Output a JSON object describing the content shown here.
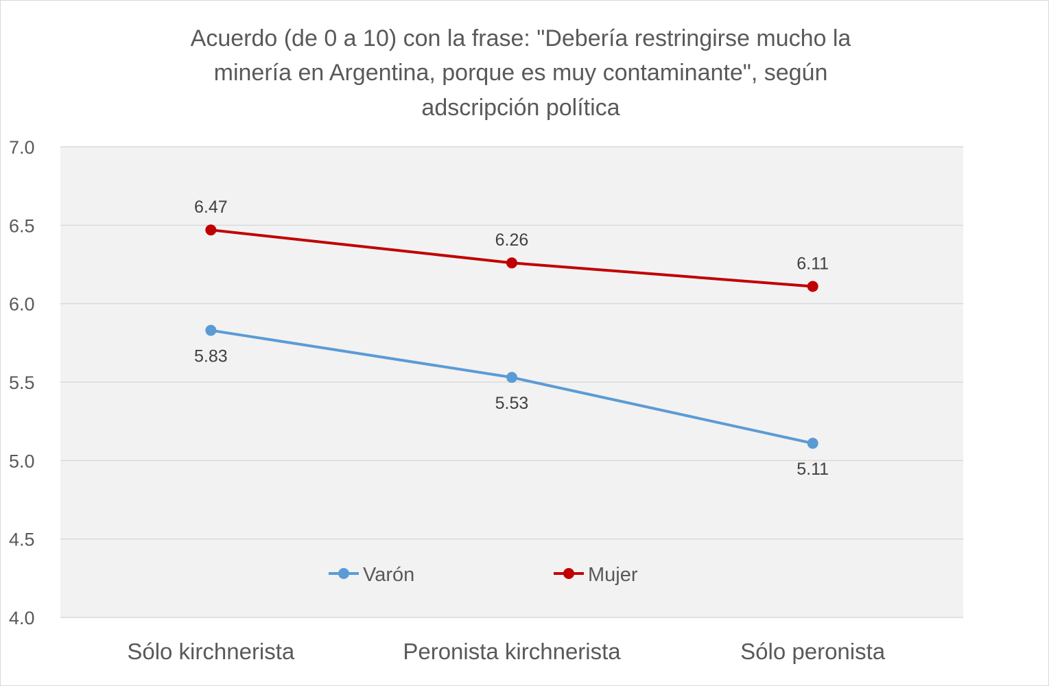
{
  "chart_data": {
    "type": "line",
    "title_lines": [
      "Acuerdo (de 0 a 10) con la frase: \"Debería restringirse mucho la",
      "minería en Argentina, porque es muy contaminante\", según",
      "adscripción política"
    ],
    "categories": [
      "Sólo kirchnerista",
      "Peronista kirchnerista",
      "Sólo peronista"
    ],
    "series": [
      {
        "name": "Varón",
        "values": [
          5.83,
          5.53,
          5.11
        ],
        "color": "#5b9bd5",
        "labels": [
          "5.83",
          "5.53",
          "5.11"
        ],
        "label_position": "below"
      },
      {
        "name": "Mujer",
        "values": [
          6.47,
          6.26,
          6.11
        ],
        "color": "#c00000",
        "labels": [
          "6.47",
          "6.26",
          "6.11"
        ],
        "label_position": "above"
      }
    ],
    "ylim": [
      4.0,
      7.0
    ],
    "yticks": [
      "4.0",
      "4.5",
      "5.0",
      "5.5",
      "6.0",
      "6.5",
      "7.0"
    ],
    "grid": true,
    "plot_background": "#f2f2f2",
    "legend_placement": "bottom-inside"
  }
}
